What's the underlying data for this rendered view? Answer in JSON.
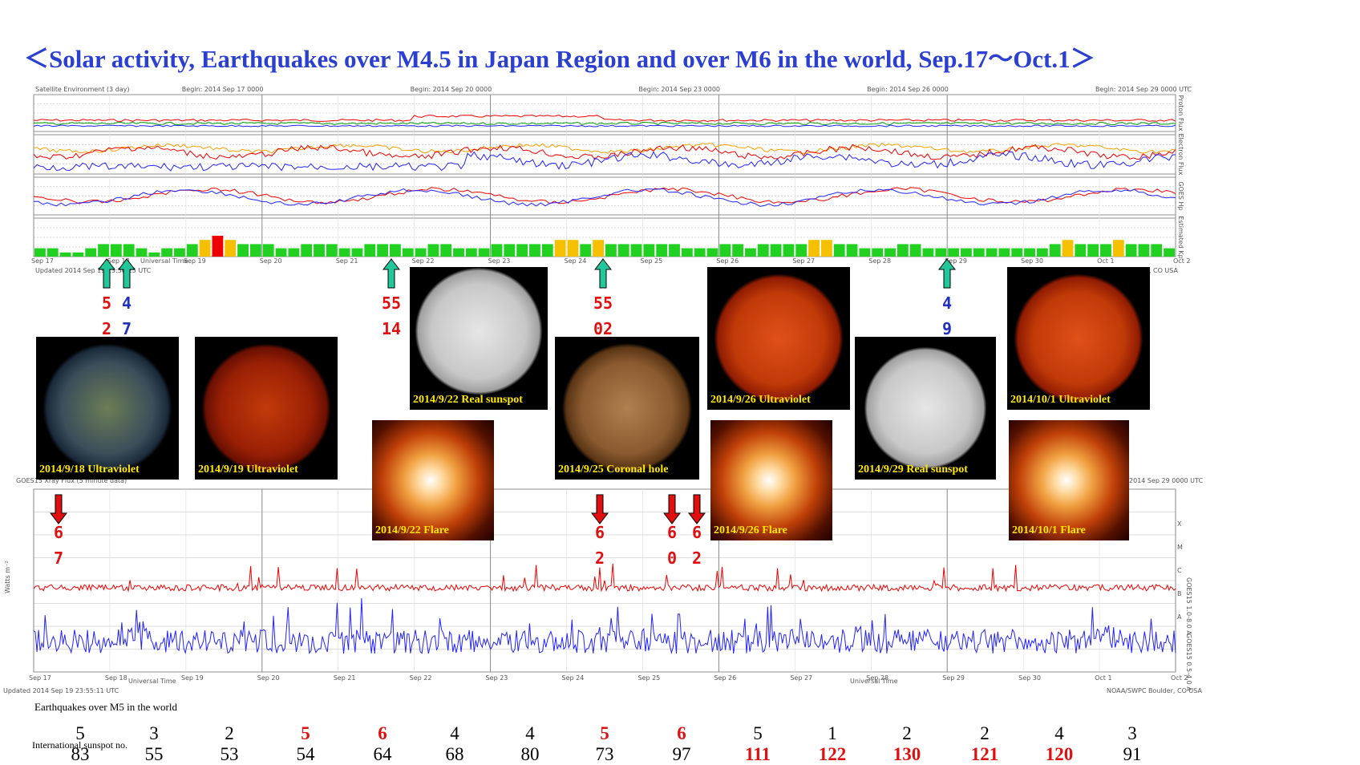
{
  "title": "＜Solar activity, Earthquakes over M4.5 in Japan Region and over M6 in the world, Sep.17～Oct.1＞",
  "top_chart": {
    "header_left": "Satellite Environment (3 day)",
    "header_begins": [
      "Begin: 2014 Sep 17 0000",
      "Begin: 2014 Sep 20 0000",
      "Begin: 2014 Sep 23 0000",
      "Begin: 2014 Sep 26 0000",
      "Begin: 2014 Sep 29 0000 UTC"
    ],
    "panel_labels": [
      "Proton Flux",
      "Electron Flux",
      "GOES Hp",
      "Estimated Kp"
    ],
    "footer_updated": "Updated 2014 Sep 19 23:56:25 UTC",
    "footer_noaa": "NOAA/SWPC Boulder, CO USA",
    "xaxis_label": "Universal Time",
    "day_ticks": [
      "Sep 17",
      "Sep 18",
      "Sep 19",
      "Sep 20",
      "Sep 21",
      "Sep 22",
      "Sep 23",
      "Sep 24",
      "Sep 25",
      "Sep 26",
      "Sep 27",
      "Sep 28",
      "Sep 29",
      "Sep 30",
      "Oct 1",
      "Oct 2"
    ]
  },
  "bottom_chart": {
    "header_left": "GOES15 Xray Flux (5 minute data)",
    "header_right": "Begin: 2014 Sep 29 0000 UTC",
    "ylabel": "Watts m⁻²",
    "right_label_red": "GOES15 1.0-8.0 A",
    "right_label_blue": "GOES15 0.5-4.0 A",
    "class_letters": [
      "X",
      "M",
      "C",
      "B",
      "A"
    ],
    "xaxis_label": "Universal Time",
    "footer_updated": "Updated 2014 Sep 19 23:55:11 UTC",
    "footer_noaa": "NOAA/SWPC Boulder, CO USA",
    "day_ticks": [
      "Sep 17",
      "Sep 18",
      "Sep 19",
      "Sep 20",
      "Sep 21",
      "Sep 22",
      "Sep 23",
      "Sep 24",
      "Sep 25",
      "Sep 26",
      "Sep 27",
      "Sep 28",
      "Sep 29",
      "Sep 30",
      "Oct 1",
      "Oct 2"
    ]
  },
  "images": [
    {
      "caption": "2014/9/18 Ultraviolet"
    },
    {
      "caption": "2014/9/19 Ultraviolet"
    },
    {
      "caption": "2014/9/22 Real sunspot"
    },
    {
      "caption": "2014/9/22 Flare"
    },
    {
      "caption": "2014/9/25 Coronal hole"
    },
    {
      "caption": "2014/9/26 Ultraviolet"
    },
    {
      "caption": "2014/9/26 Flare"
    },
    {
      "caption": "2014/9/29 Real sunspot"
    },
    {
      "caption": "2014/10/1 Ultraviolet"
    },
    {
      "caption": "2014/10/1 Flare"
    }
  ],
  "japan_eq_labels": [
    {
      "top": "5",
      "bottom": "2",
      "color": "red"
    },
    {
      "top": "4",
      "bottom": "7",
      "color": "blue"
    },
    {
      "top": "55",
      "bottom": "14",
      "color": "red"
    },
    {
      "top": "55",
      "bottom": "02",
      "color": "red"
    },
    {
      "top": "4",
      "bottom": "9",
      "color": "blue"
    }
  ],
  "world_eq_labels": [
    {
      "top": "6",
      "bottom": "7"
    },
    {
      "top": "6",
      "bottom": "2"
    },
    {
      "top": "6",
      "bottom": "0"
    },
    {
      "top": "6",
      "bottom": "2"
    }
  ],
  "kp_values": [
    2,
    2,
    1,
    1,
    2,
    3,
    3,
    3,
    2,
    1,
    2,
    2,
    3,
    4,
    5,
    4,
    3,
    3,
    3,
    2,
    2,
    3,
    3,
    3,
    2,
    2,
    3,
    3,
    3,
    2,
    2,
    3,
    3,
    2,
    2,
    2,
    3,
    3,
    3,
    3,
    3,
    4,
    4,
    3,
    4,
    3,
    3,
    3,
    3,
    3,
    3,
    2,
    2,
    2,
    3,
    3,
    2,
    3,
    3,
    3,
    3,
    4,
    4,
    3,
    3,
    2,
    2,
    2,
    3,
    3,
    2,
    2,
    2,
    2,
    2,
    2,
    2,
    2,
    2,
    2,
    3,
    4,
    3,
    3,
    3,
    4,
    3,
    3,
    3,
    2
  ],
  "earthquakes_label": "Earthquakes over M5 in the world",
  "earthquake_counts": [
    "5",
    "3",
    "2",
    "5",
    "6",
    "4",
    "4",
    "5",
    "6",
    "5",
    "1",
    "2",
    "2",
    "4",
    "3"
  ],
  "sunspot_label": "International sunspot no.",
  "sunspot_numbers": [
    "83",
    "55",
    "53",
    "54",
    "64",
    "68",
    "80",
    "73",
    "97",
    "111",
    "122",
    "130",
    "121",
    "120",
    "91"
  ],
  "chart_data": {
    "type": "table",
    "columns": [
      "Sep.17",
      "Sep.18",
      "Sep.19",
      "Sep.20",
      "Sep.21",
      "Sep.22",
      "Sep.23",
      "Sep.24",
      "Sep.25",
      "Sep.26",
      "Sep.27",
      "Sep.28",
      "Sep.29",
      "Sep.30",
      "Oct.1"
    ],
    "series": [
      {
        "name": "Earthquakes over M5 in the world",
        "values": [
          5,
          3,
          2,
          5,
          6,
          4,
          4,
          5,
          6,
          5,
          1,
          2,
          2,
          4,
          3
        ]
      },
      {
        "name": "International sunspot no.",
        "values": [
          83,
          55,
          53,
          54,
          64,
          68,
          80,
          73,
          97,
          111,
          122,
          130,
          121,
          120,
          91
        ]
      }
    ]
  }
}
